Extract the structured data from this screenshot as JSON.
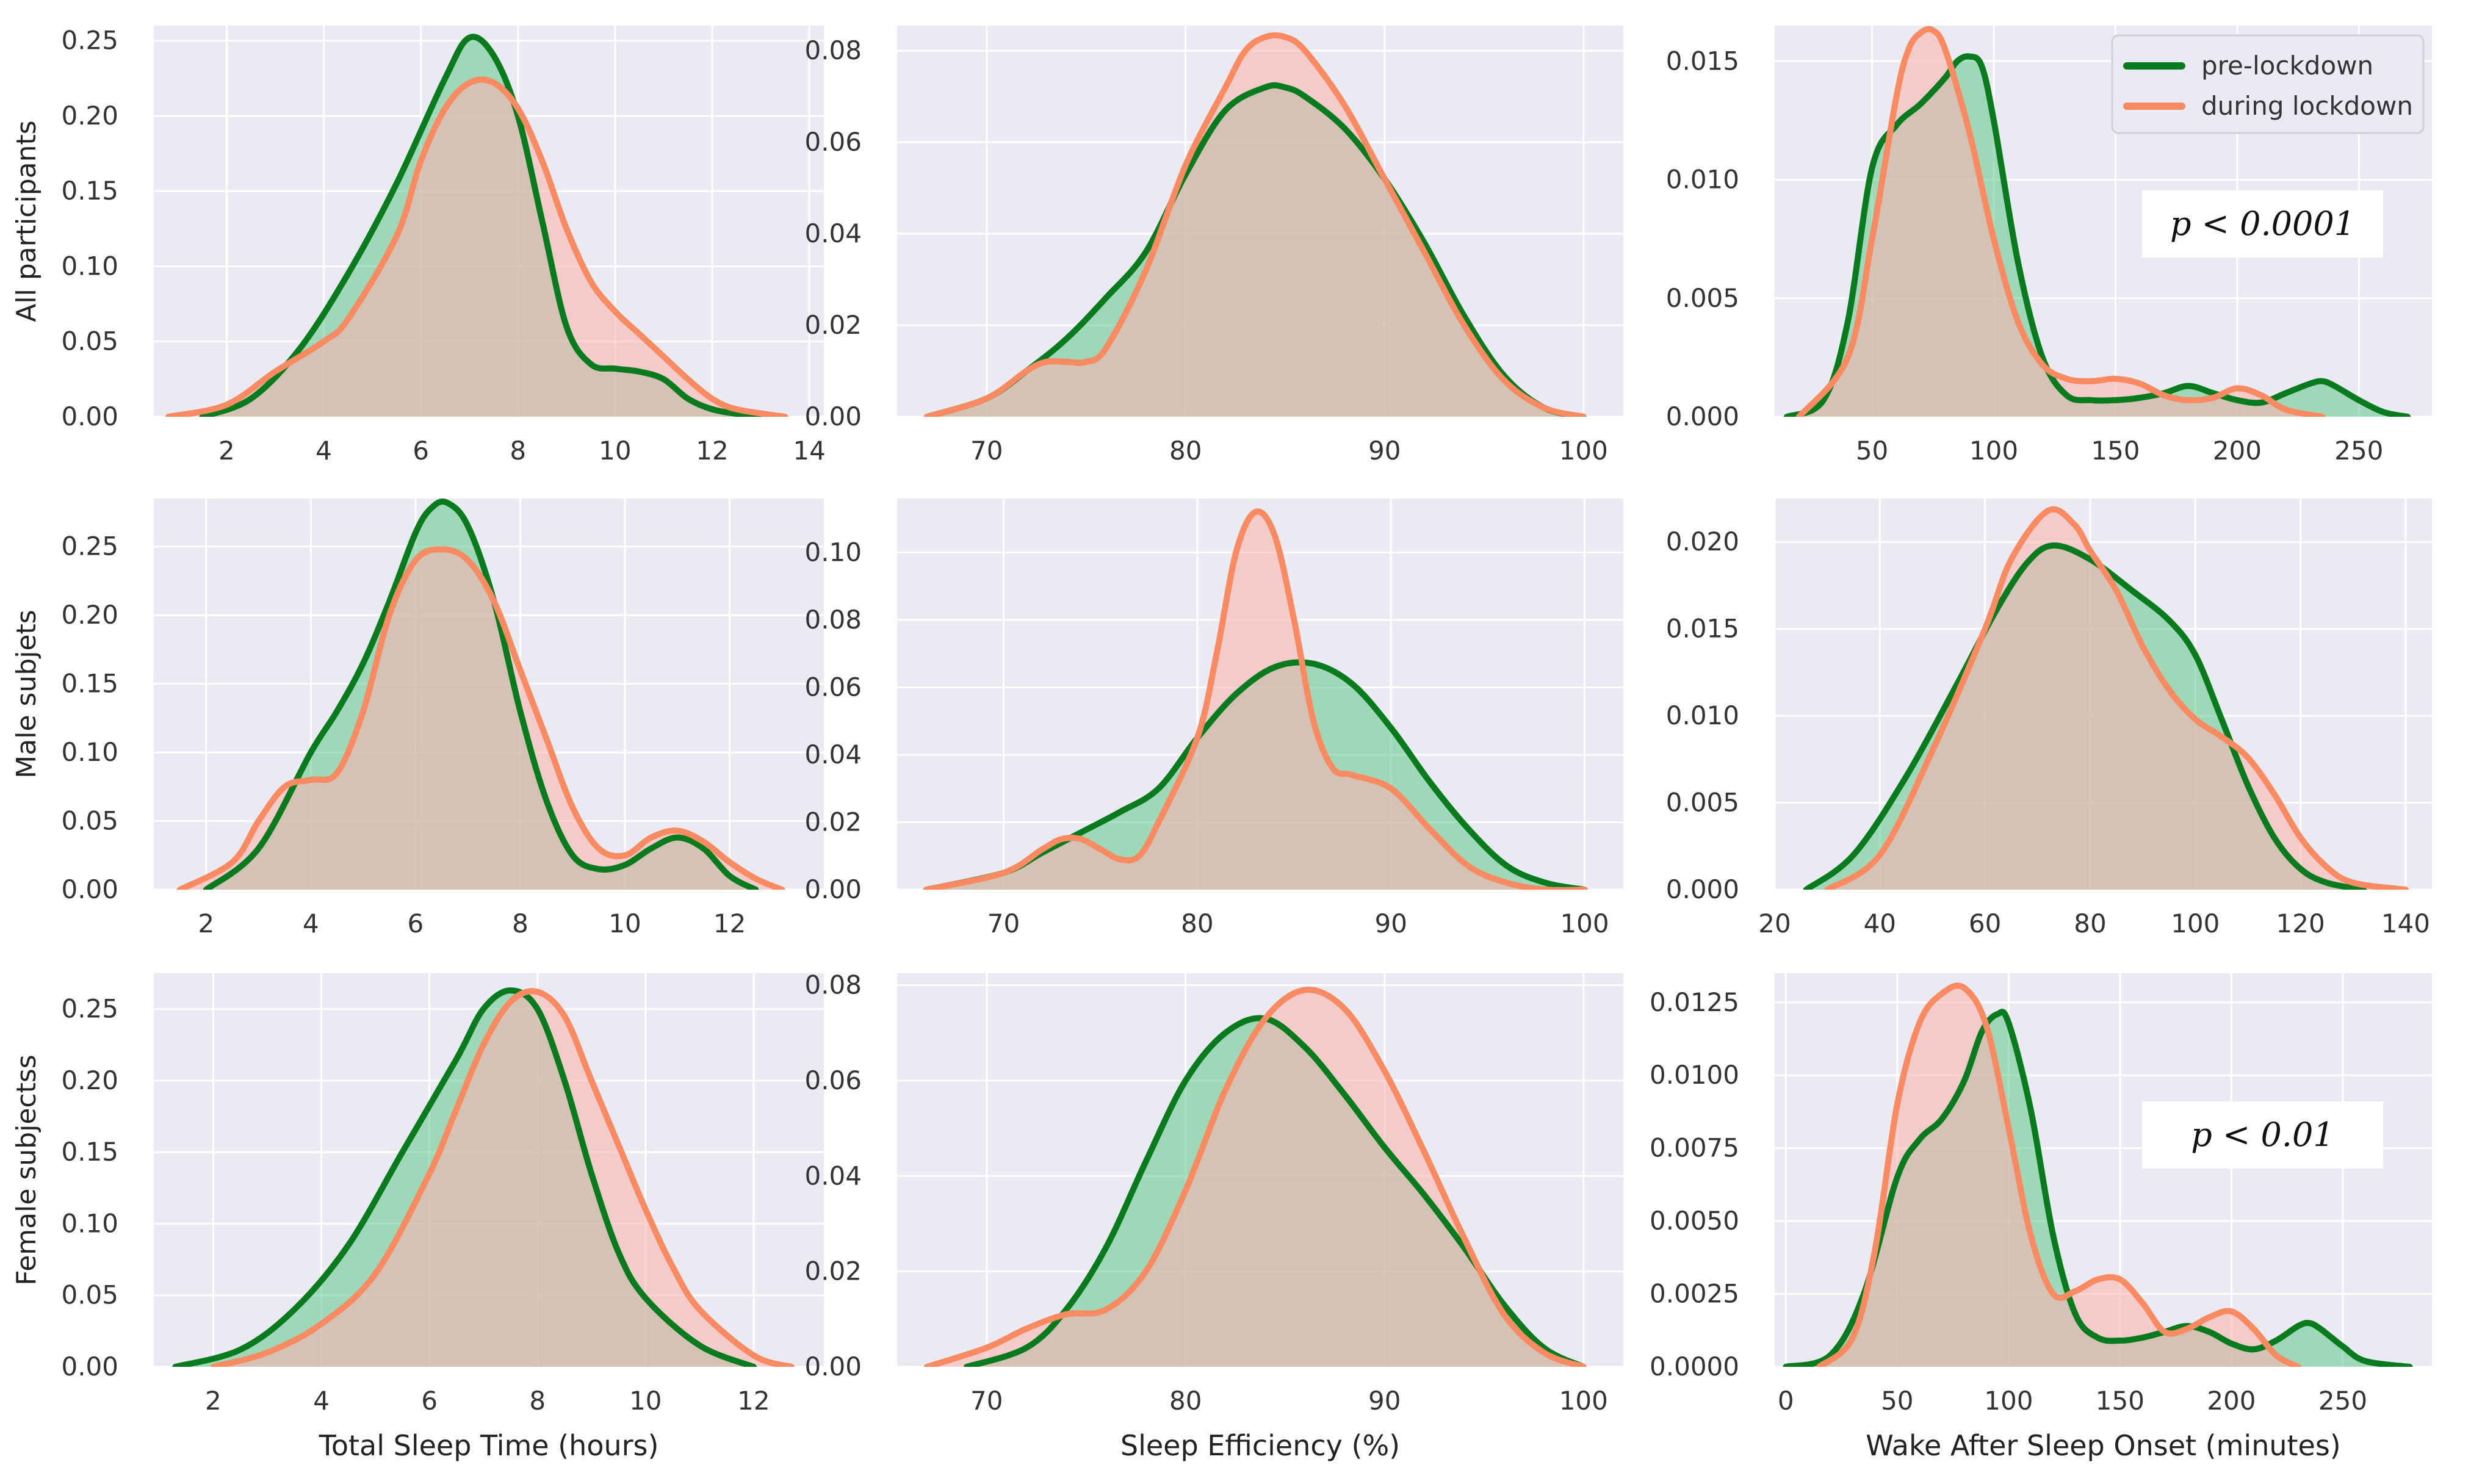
{
  "colors": {
    "background": "#eaeaf2",
    "grid": "#ffffff",
    "pre_line": "#0a7a1e",
    "pre_fill": "#5fc88a",
    "during_line": "#fa8a62",
    "during_fill": "#f8b6b0"
  },
  "legend": {
    "items": [
      {
        "label": "pre-lockdown",
        "series": "pre"
      },
      {
        "label": "during lockdown",
        "series": "during"
      }
    ],
    "placement": "top-right of first-row third panel"
  },
  "row_labels": [
    "All participants",
    "Male subjets",
    "Female subjectss"
  ],
  "col_labels": [
    "Total Sleep Time (hours)",
    "Sleep Efficiency (%)",
    "Wake After Sleep Onset (minutes)"
  ],
  "chart_data": [
    {
      "type": "area",
      "row": 0,
      "col": 0,
      "ylabel": "All participants",
      "xlabel": "",
      "xlim": [
        0.5,
        14.3
      ],
      "ylim": [
        0,
        0.26
      ],
      "xticks": [
        "2",
        "4",
        "6",
        "8",
        "10",
        "12",
        "14"
      ],
      "yticks": [
        "0.00",
        "0.05",
        "0.10",
        "0.15",
        "0.20",
        "0.25"
      ],
      "series": [
        {
          "name": "pre-lockdown",
          "x": [
            1.5,
            2.5,
            3.5,
            4.5,
            5.5,
            6.5,
            7.0,
            7.5,
            8.0,
            8.5,
            9.0,
            9.5,
            10.0,
            10.5,
            11.0,
            11.5,
            12.0,
            12.5,
            13.0
          ],
          "y": [
            0.0,
            0.012,
            0.045,
            0.095,
            0.155,
            0.225,
            0.252,
            0.24,
            0.2,
            0.13,
            0.06,
            0.035,
            0.032,
            0.03,
            0.025,
            0.012,
            0.005,
            0.002,
            0.0
          ]
        },
        {
          "name": "during lockdown",
          "x": [
            0.8,
            2.0,
            3.0,
            4.0,
            4.5,
            5.5,
            6.0,
            6.5,
            7.0,
            7.5,
            8.0,
            8.5,
            9.0,
            9.5,
            10.0,
            10.5,
            11.0,
            11.5,
            12.0,
            12.5,
            13.5
          ],
          "y": [
            0.0,
            0.008,
            0.03,
            0.05,
            0.065,
            0.12,
            0.17,
            0.205,
            0.222,
            0.222,
            0.205,
            0.17,
            0.125,
            0.09,
            0.07,
            0.055,
            0.04,
            0.025,
            0.012,
            0.005,
            0.0
          ]
        }
      ]
    },
    {
      "type": "area",
      "row": 0,
      "col": 1,
      "ylabel": "",
      "xlabel": "",
      "xlim": [
        65.5,
        102
      ],
      "ylim": [
        0,
        0.0855
      ],
      "xticks": [
        "70",
        "80",
        "90",
        "100"
      ],
      "yticks": [
        "0.00",
        "0.02",
        "0.04",
        "0.06",
        "0.08"
      ],
      "series": [
        {
          "name": "pre-lockdown",
          "x": [
            67,
            70,
            72,
            74,
            76,
            78,
            80,
            82,
            84,
            85,
            86,
            88,
            90,
            92,
            94,
            96,
            98,
            100
          ],
          "y": [
            0.0,
            0.004,
            0.01,
            0.017,
            0.026,
            0.036,
            0.053,
            0.067,
            0.072,
            0.072,
            0.07,
            0.063,
            0.052,
            0.038,
            0.022,
            0.009,
            0.002,
            0.0
          ]
        },
        {
          "name": "during lockdown",
          "x": [
            67,
            70,
            72,
            73,
            74,
            75,
            76,
            78,
            80,
            82,
            83,
            84,
            85,
            86,
            88,
            90,
            92,
            94,
            96,
            98,
            100
          ],
          "y": [
            0.0,
            0.004,
            0.01,
            0.012,
            0.012,
            0.012,
            0.015,
            0.032,
            0.055,
            0.072,
            0.08,
            0.083,
            0.083,
            0.08,
            0.068,
            0.052,
            0.036,
            0.02,
            0.008,
            0.002,
            0.0
          ]
        }
      ]
    },
    {
      "type": "area",
      "row": 0,
      "col": 2,
      "ylabel": "",
      "xlabel": "",
      "xlim": [
        10,
        280
      ],
      "ylim": [
        0,
        0.0165
      ],
      "xticks": [
        "50",
        "100",
        "150",
        "200",
        "250"
      ],
      "yticks": [
        "0.000",
        "0.005",
        "0.010",
        "0.015"
      ],
      "annotation": "p < 0.0001",
      "series": [
        {
          "name": "pre-lockdown",
          "x": [
            15,
            30,
            40,
            50,
            60,
            70,
            80,
            85,
            90,
            95,
            100,
            110,
            120,
            130,
            140,
            150,
            160,
            170,
            180,
            190,
            200,
            210,
            220,
            230,
            235,
            240,
            250,
            260,
            270
          ],
          "y": [
            0.0,
            0.0007,
            0.004,
            0.0105,
            0.0123,
            0.0132,
            0.0143,
            0.015,
            0.0152,
            0.0148,
            0.0125,
            0.0065,
            0.0025,
            0.0009,
            0.0007,
            0.0007,
            0.0008,
            0.001,
            0.0013,
            0.001,
            0.0007,
            0.0006,
            0.001,
            0.0014,
            0.0015,
            0.0013,
            0.0007,
            0.0002,
            0.0
          ]
        },
        {
          "name": "during lockdown",
          "x": [
            20,
            40,
            50,
            60,
            65,
            70,
            75,
            80,
            90,
            100,
            110,
            120,
            130,
            140,
            150,
            160,
            170,
            180,
            190,
            200,
            210,
            220,
            235
          ],
          "y": [
            0.0,
            0.0025,
            0.0075,
            0.0135,
            0.0155,
            0.0162,
            0.0163,
            0.0155,
            0.012,
            0.0075,
            0.004,
            0.0022,
            0.0016,
            0.0015,
            0.0016,
            0.0014,
            0.0009,
            0.0007,
            0.0008,
            0.0012,
            0.0009,
            0.0003,
            0.0
          ]
        }
      ]
    },
    {
      "type": "area",
      "row": 1,
      "col": 0,
      "ylabel": "Male subjets",
      "xlabel": "",
      "xlim": [
        1.0,
        13.8
      ],
      "ylim": [
        0,
        0.285
      ],
      "xticks": [
        "2",
        "4",
        "6",
        "8",
        "10",
        "12"
      ],
      "yticks": [
        "0.00",
        "0.05",
        "0.10",
        "0.15",
        "0.20",
        "0.25"
      ],
      "series": [
        {
          "name": "pre-lockdown",
          "x": [
            2.0,
            3.0,
            4.0,
            4.5,
            5.0,
            5.5,
            6.0,
            6.3,
            6.6,
            7.0,
            7.5,
            8.0,
            8.5,
            9.0,
            9.5,
            10.0,
            10.5,
            11.0,
            11.5,
            12.0,
            12.5
          ],
          "y": [
            0.0,
            0.03,
            0.1,
            0.13,
            0.165,
            0.21,
            0.26,
            0.278,
            0.282,
            0.265,
            0.21,
            0.13,
            0.065,
            0.025,
            0.015,
            0.018,
            0.03,
            0.038,
            0.03,
            0.01,
            0.0
          ]
        },
        {
          "name": "during lockdown",
          "x": [
            1.5,
            2.5,
            3.0,
            3.5,
            4.0,
            4.5,
            5.0,
            5.5,
            6.0,
            6.5,
            7.0,
            7.5,
            8.0,
            8.5,
            9.0,
            9.5,
            10.0,
            10.5,
            11.0,
            11.5,
            12.0,
            12.5,
            13.0
          ],
          "y": [
            0.0,
            0.02,
            0.05,
            0.075,
            0.08,
            0.085,
            0.13,
            0.2,
            0.24,
            0.248,
            0.24,
            0.21,
            0.16,
            0.11,
            0.06,
            0.03,
            0.025,
            0.038,
            0.043,
            0.035,
            0.02,
            0.008,
            0.0
          ]
        }
      ]
    },
    {
      "type": "area",
      "row": 1,
      "col": 1,
      "ylabel": "",
      "xlabel": "",
      "xlim": [
        64.5,
        102
      ],
      "ylim": [
        0,
        0.116
      ],
      "xticks": [
        "70",
        "80",
        "90",
        "100"
      ],
      "yticks": [
        "0.00",
        "0.02",
        "0.04",
        "0.06",
        "0.08",
        "0.10"
      ],
      "series": [
        {
          "name": "pre-lockdown",
          "x": [
            66,
            70,
            72,
            74,
            76,
            78,
            80,
            82,
            84,
            86,
            88,
            90,
            92,
            94,
            96,
            98,
            100
          ],
          "y": [
            0.0,
            0.005,
            0.011,
            0.017,
            0.023,
            0.03,
            0.045,
            0.058,
            0.066,
            0.067,
            0.061,
            0.048,
            0.032,
            0.018,
            0.007,
            0.002,
            0.0
          ]
        },
        {
          "name": "during lockdown",
          "x": [
            66,
            70,
            72,
            73,
            74,
            75,
            76,
            77,
            78,
            80,
            81,
            82,
            83,
            84,
            85,
            86,
            87,
            88,
            90,
            92,
            94,
            96,
            98,
            100
          ],
          "y": [
            0.0,
            0.005,
            0.012,
            0.015,
            0.015,
            0.012,
            0.009,
            0.01,
            0.02,
            0.045,
            0.07,
            0.1,
            0.112,
            0.105,
            0.08,
            0.05,
            0.036,
            0.034,
            0.03,
            0.018,
            0.007,
            0.002,
            0.0,
            0.0
          ]
        }
      ]
    },
    {
      "type": "area",
      "row": 1,
      "col": 2,
      "ylabel": "",
      "xlabel": "",
      "xlim": [
        20,
        145
      ],
      "ylim": [
        0,
        0.0225
      ],
      "xticks": [
        "20",
        "40",
        "60",
        "80",
        "100",
        "120",
        "140"
      ],
      "yticks": [
        "0.000",
        "0.005",
        "0.010",
        "0.015",
        "0.020"
      ],
      "series": [
        {
          "name": "pre-lockdown",
          "x": [
            26,
            35,
            45,
            55,
            62,
            68,
            73,
            80,
            88,
            95,
            100,
            105,
            110,
            115,
            120,
            125,
            132
          ],
          "y": [
            0.0,
            0.002,
            0.0065,
            0.012,
            0.016,
            0.0188,
            0.0198,
            0.019,
            0.0172,
            0.0155,
            0.0135,
            0.0098,
            0.006,
            0.003,
            0.0012,
            0.0004,
            0.0
          ]
        },
        {
          "name": "during lockdown",
          "x": [
            30,
            40,
            50,
            60,
            65,
            72,
            77,
            80,
            85,
            90,
            95,
            100,
            105,
            110,
            115,
            120,
            125,
            130,
            140
          ],
          "y": [
            0.0,
            0.002,
            0.008,
            0.015,
            0.019,
            0.0218,
            0.021,
            0.0195,
            0.0172,
            0.014,
            0.0115,
            0.0098,
            0.0088,
            0.0076,
            0.0055,
            0.003,
            0.0013,
            0.0004,
            0.0
          ]
        }
      ]
    },
    {
      "type": "area",
      "row": 2,
      "col": 0,
      "ylabel": "Female subjectss",
      "xlabel": "Total Sleep Time (hours)",
      "xlim": [
        0.9,
        13.3
      ],
      "ylim": [
        0,
        0.275
      ],
      "xticks": [
        "2",
        "4",
        "6",
        "8",
        "10",
        "12"
      ],
      "yticks": [
        "0.00",
        "0.05",
        "0.10",
        "0.15",
        "0.20",
        "0.25"
      ],
      "series": [
        {
          "name": "pre-lockdown",
          "x": [
            1.3,
            2.5,
            3.5,
            4.5,
            5.5,
            6.5,
            7.0,
            7.5,
            8.0,
            8.5,
            9.0,
            9.5,
            10.0,
            11.0,
            12.0
          ],
          "y": [
            0.0,
            0.012,
            0.04,
            0.085,
            0.15,
            0.215,
            0.25,
            0.263,
            0.25,
            0.2,
            0.135,
            0.08,
            0.048,
            0.015,
            0.0
          ]
        },
        {
          "name": "during lockdown",
          "x": [
            2.0,
            3.0,
            4.0,
            5.0,
            6.0,
            6.5,
            7.0,
            7.5,
            8.0,
            8.5,
            9.0,
            9.5,
            10.0,
            10.5,
            11.0,
            12.0,
            12.7
          ],
          "y": [
            0.0,
            0.01,
            0.03,
            0.065,
            0.135,
            0.18,
            0.225,
            0.255,
            0.262,
            0.245,
            0.2,
            0.155,
            0.11,
            0.07,
            0.04,
            0.008,
            0.0
          ]
        }
      ]
    },
    {
      "type": "area",
      "row": 2,
      "col": 1,
      "ylabel": "",
      "xlabel": "Sleep Efficiency (%)",
      "xlim": [
        65.5,
        102
      ],
      "ylim": [
        0,
        0.0825
      ],
      "xticks": [
        "70",
        "80",
        "90",
        "100"
      ],
      "yticks": [
        "0.00",
        "0.02",
        "0.04",
        "0.06",
        "0.08"
      ],
      "series": [
        {
          "name": "pre-lockdown",
          "x": [
            69,
            72,
            74,
            76,
            78,
            80,
            82,
            84,
            86,
            88,
            90,
            92,
            94,
            96,
            98,
            100
          ],
          "y": [
            0.0,
            0.004,
            0.012,
            0.025,
            0.043,
            0.06,
            0.07,
            0.073,
            0.067,
            0.057,
            0.046,
            0.036,
            0.025,
            0.013,
            0.004,
            0.0
          ]
        },
        {
          "name": "during lockdown",
          "x": [
            67,
            70,
            72,
            74,
            76,
            78,
            80,
            82,
            84,
            86,
            88,
            90,
            92,
            94,
            96,
            98,
            100
          ],
          "y": [
            0.0,
            0.004,
            0.008,
            0.011,
            0.012,
            0.02,
            0.037,
            0.058,
            0.073,
            0.079,
            0.075,
            0.062,
            0.045,
            0.027,
            0.011,
            0.003,
            0.0
          ]
        }
      ]
    },
    {
      "type": "area",
      "row": 2,
      "col": 2,
      "ylabel": "",
      "xlabel": "Wake After Sleep Onset (minutes)",
      "xlim": [
        -5,
        290
      ],
      "ylim": [
        0,
        0.0135
      ],
      "xticks": [
        "0",
        "50",
        "100",
        "150",
        "200",
        "250"
      ],
      "yticks": [
        "0.0000",
        "0.0025",
        "0.0050",
        "0.0075",
        "0.0100",
        "0.0125"
      ],
      "annotation": "p < 0.01",
      "series": [
        {
          "name": "pre-lockdown",
          "x": [
            0,
            20,
            35,
            50,
            60,
            70,
            80,
            88,
            95,
            100,
            110,
            120,
            130,
            140,
            150,
            160,
            170,
            180,
            190,
            200,
            210,
            220,
            230,
            235,
            240,
            250,
            260,
            280
          ],
          "y": [
            0.0,
            0.0004,
            0.0025,
            0.0065,
            0.0078,
            0.0085,
            0.0098,
            0.0115,
            0.0121,
            0.0118,
            0.0088,
            0.0045,
            0.0018,
            0.001,
            0.0009,
            0.001,
            0.0012,
            0.0014,
            0.0012,
            0.0008,
            0.0006,
            0.0009,
            0.0014,
            0.0015,
            0.0013,
            0.0007,
            0.0002,
            0.0
          ]
        },
        {
          "name": "during lockdown",
          "x": [
            15,
            30,
            40,
            50,
            60,
            70,
            80,
            90,
            100,
            110,
            120,
            130,
            140,
            150,
            160,
            170,
            180,
            190,
            200,
            210,
            220,
            230
          ],
          "y": [
            0.0,
            0.001,
            0.004,
            0.009,
            0.0118,
            0.0128,
            0.013,
            0.0117,
            0.0082,
            0.0045,
            0.0025,
            0.0026,
            0.003,
            0.003,
            0.0022,
            0.0012,
            0.0013,
            0.0017,
            0.0019,
            0.0013,
            0.0004,
            0.0
          ]
        }
      ]
    }
  ]
}
